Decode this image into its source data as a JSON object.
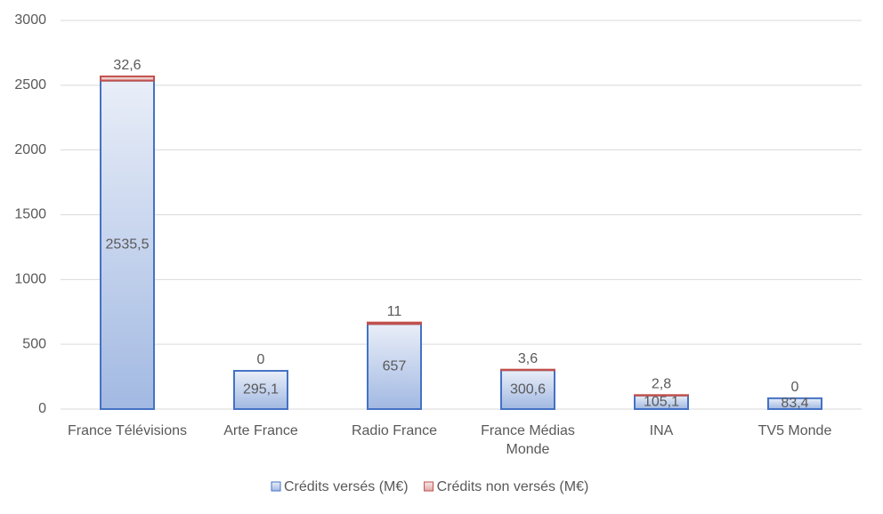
{
  "chart_data": {
    "type": "stacked_bar",
    "categories": [
      "France Télévisions",
      "Arte France",
      "Radio France",
      "France Médias Monde",
      "INA",
      "TV5 Monde"
    ],
    "series": [
      {
        "name": "Crédits versés (M€)",
        "color": "#4472c4",
        "values": [
          2535.5,
          295.1,
          657,
          300.6,
          105.1,
          83.4
        ],
        "value_labels": [
          "2535,5",
          "295,1",
          "657",
          "300,6",
          "105,1",
          "83,4"
        ]
      },
      {
        "name": "Crédits non versés (M€)",
        "color": "#c0504d",
        "values": [
          32.6,
          0,
          11,
          3.6,
          2.8,
          0
        ],
        "value_labels": [
          "32,6",
          "0",
          "11",
          "3,6",
          "2,8",
          "0"
        ]
      }
    ],
    "ylim": [
      0,
      3000
    ],
    "yticks": [
      0,
      500,
      1000,
      1500,
      2000,
      2500,
      3000
    ],
    "grid": true,
    "legend": "bottom"
  }
}
